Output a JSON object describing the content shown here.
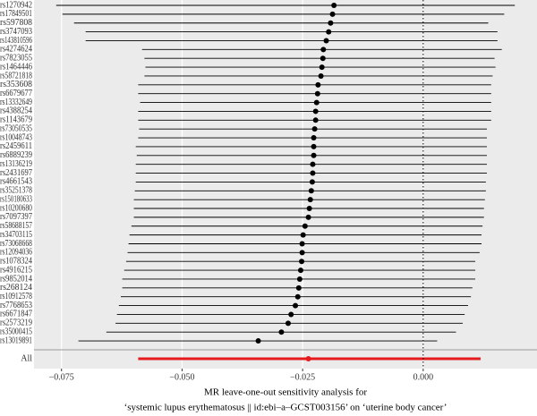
{
  "chart_data": {
    "type": "forest",
    "xlabel": [
      "MR leave-one-out sensitivity analysis for",
      "‘systemic lupus erythematosus || id:ebi–a–GCST003156’ on ‘uterine body cancer’"
    ],
    "categories": [
      "rs1270942",
      "rs17849501",
      "rs597808",
      "rs3747093",
      "rs143810596",
      "rs4274624",
      "rs7823055",
      "rs1464446",
      "rs58721818",
      "rs353608",
      "rs6679677",
      "rs13332649",
      "rs4388254",
      "rs1143679",
      "rs73050535",
      "rs10048743",
      "rs2459611",
      "rs6889239",
      "rs13136219",
      "rs2431697",
      "rs4661543",
      "rs35251378",
      "rs150180633",
      "rs10200680",
      "rs7097397",
      "rs58688157",
      "rs34703115",
      "rs73068668",
      "rs12094036",
      "rs1078324",
      "rs4916215",
      "rs9852014",
      "rs268124",
      "rs10912578",
      "rs7768653",
      "rs6671847",
      "rs2573219",
      "rs35000415",
      "rs13019891"
    ],
    "values": [
      -0.0185,
      -0.0188,
      -0.0192,
      -0.0196,
      -0.0201,
      -0.0207,
      -0.0208,
      -0.021,
      -0.0212,
      -0.0218,
      -0.0219,
      -0.0221,
      -0.0223,
      -0.0223,
      -0.0225,
      -0.0227,
      -0.0227,
      -0.0227,
      -0.0229,
      -0.0229,
      -0.023,
      -0.0232,
      -0.0234,
      -0.0236,
      -0.0238,
      -0.0245,
      -0.0249,
      -0.0251,
      -0.0251,
      -0.0252,
      -0.0254,
      -0.0256,
      -0.0258,
      -0.026,
      -0.0265,
      -0.0274,
      -0.028,
      -0.0294,
      -0.0342
    ],
    "lower": [
      -0.0761,
      -0.0748,
      -0.0724,
      -0.07,
      -0.07,
      -0.0583,
      -0.0578,
      -0.0576,
      -0.0578,
      -0.0591,
      -0.0591,
      -0.0587,
      -0.0591,
      -0.0591,
      -0.0589,
      -0.0591,
      -0.0596,
      -0.0594,
      -0.0596,
      -0.0596,
      -0.0596,
      -0.0598,
      -0.06,
      -0.06,
      -0.06,
      -0.0605,
      -0.0609,
      -0.0611,
      -0.0613,
      -0.0616,
      -0.062,
      -0.0624,
      -0.0624,
      -0.0627,
      -0.0631,
      -0.0635,
      -0.0638,
      -0.0657,
      -0.0715
    ],
    "upper": [
      0.019,
      0.0168,
      0.0135,
      0.0154,
      0.0154,
      0.0163,
      0.0148,
      0.015,
      0.0144,
      0.0141,
      0.0141,
      0.0141,
      0.0141,
      0.0141,
      0.0132,
      0.0132,
      0.0132,
      0.0132,
      0.0132,
      0.0132,
      0.013,
      0.013,
      0.0128,
      0.0126,
      0.0126,
      0.0123,
      0.0121,
      0.0121,
      0.0117,
      0.0108,
      0.0108,
      0.0108,
      0.0102,
      0.0099,
      0.0093,
      0.0086,
      0.0082,
      0.0068,
      0.0029
    ],
    "color": "#000000",
    "summary": {
      "label": "All",
      "value": -0.0238,
      "lower": -0.0591,
      "upper": 0.0119,
      "color": "#e41a1c"
    },
    "reference_line": 0,
    "xlim": [
      -0.0807,
      0.0236
    ],
    "xticks": [
      {
        "value": -0.075,
        "label": "−0.075"
      },
      {
        "value": -0.05,
        "label": "−0.050"
      },
      {
        "value": -0.025,
        "label": "−0.025"
      },
      {
        "value": 0,
        "label": "0.000"
      }
    ],
    "grid": true
  }
}
